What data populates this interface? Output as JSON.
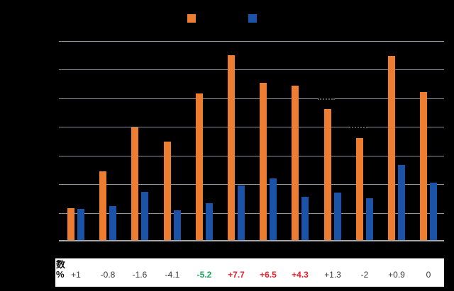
{
  "app": {
    "background_color": "#000000",
    "note_visible_text_only": "axis, legend and category labels are not visible (black on black)"
  },
  "legend": {
    "position": "top",
    "swatches": [
      {
        "name": "orange-series-swatch",
        "color": "#ED7D31"
      },
      {
        "name": "blue-series-swatch",
        "color": "#1A53A8"
      }
    ]
  },
  "chart_data": {
    "type": "bar",
    "title": "",
    "categories": [
      "",
      "",
      "",
      "",
      "",
      "",
      "",
      "",
      "",
      "",
      "",
      ""
    ],
    "series": [
      {
        "name": "orange",
        "color": "#ED7D31",
        "values": [
          22.5,
          48,
          78.5,
          69,
          102.5,
          129,
          110,
          108,
          91.5,
          71,
          128.5,
          103.5
        ]
      },
      {
        "name": "blue",
        "color": "#1A53A8",
        "values": [
          22,
          23.5,
          33.5,
          21,
          25.5,
          38,
          43,
          30,
          33,
          29,
          52.5,
          40
        ]
      }
    ],
    "ylim": [
      0,
      140
    ],
    "gridline_interval": 20,
    "grid": true,
    "legend_position": "top"
  },
  "table": {
    "header_top": "数",
    "header_bottom": "%",
    "default_color": "#3b3b3b",
    "negative_highlight_color": "#21A15C",
    "positive_highlight_color": "#E7212E",
    "cells": [
      {
        "text": "+1",
        "color": "#3b3b3b",
        "bold": false
      },
      {
        "text": "-0.8",
        "color": "#3b3b3b",
        "bold": false
      },
      {
        "text": "-1.6",
        "color": "#3b3b3b",
        "bold": false
      },
      {
        "text": "-4.1",
        "color": "#3b3b3b",
        "bold": false
      },
      {
        "text": "-5.2",
        "color": "#21A15C",
        "bold": true
      },
      {
        "text": "+7.7",
        "color": "#E7212E",
        "bold": true
      },
      {
        "text": "+6.5",
        "color": "#E7212E",
        "bold": true
      },
      {
        "text": "+4.3",
        "color": "#E7212E",
        "bold": true
      },
      {
        "text": "+1.3",
        "color": "#3b3b3b",
        "bold": false
      },
      {
        "text": "-2",
        "color": "#3b3b3b",
        "bold": false
      },
      {
        "text": "+0.9",
        "color": "#3b3b3b",
        "bold": false
      },
      {
        "text": "0",
        "color": "#3b3b3b",
        "bold": false
      }
    ]
  }
}
